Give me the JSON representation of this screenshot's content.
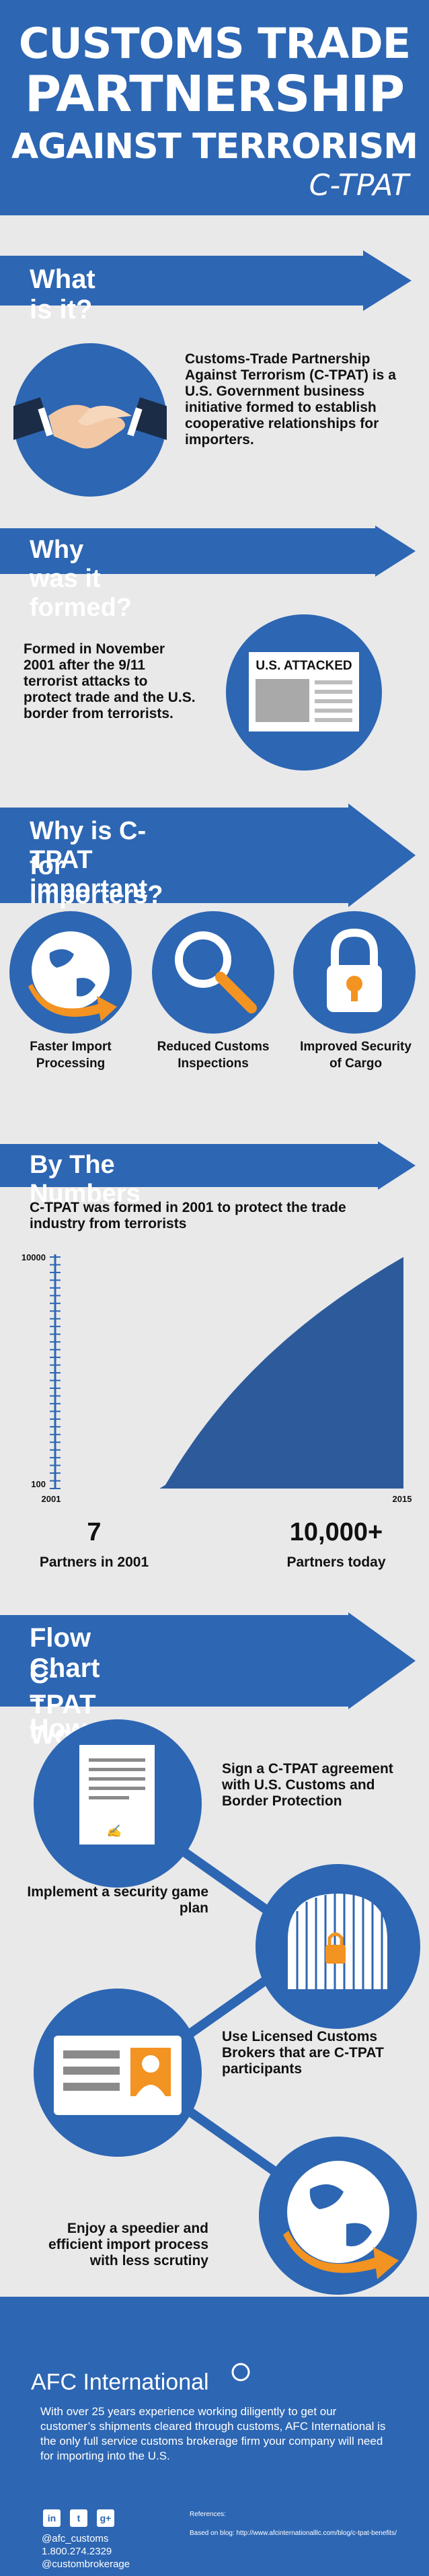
{
  "header": {
    "line1": "CUSTOMS TRADE",
    "line2": "PARTNERSHIP",
    "line3": "AGAINST TERRORISM",
    "line4": "C-TPAT"
  },
  "what": {
    "title": "What is it?",
    "text": "Customs-Trade Partnership Against Terrorism (C-TPAT) is a U.S. Government business initiative formed to establish cooperative relationships for importers."
  },
  "why_formed": {
    "title": "Why was it formed?",
    "text": "Formed in November 2001 after the 9/11 terrorist attacks to protect trade and the U.S. border from terrorists.",
    "newspaper_headline": "U.S. ATTACKED"
  },
  "importance": {
    "title_line1": "Why is C-TPAT important",
    "title_line2": "for importers?",
    "items": [
      {
        "line1": "Faster Import",
        "line2": "Processing",
        "icon": "globe-arrow-icon"
      },
      {
        "line1": "Reduced Customs",
        "line2": "Inspections",
        "icon": "magnifier-icon"
      },
      {
        "line1": "Improved Security",
        "line2": "of Cargo",
        "icon": "padlock-icon"
      }
    ]
  },
  "numbers": {
    "title": "By The Numbers",
    "subtitle": "C-TPAT was formed in 2001 to protect the trade industry from terrorists",
    "stat1_value": "7",
    "stat1_label": "Partners in 2001",
    "stat2_value": "10,000+",
    "stat2_label": "Partners today"
  },
  "chart_data": {
    "type": "area",
    "x": [
      2001,
      2015
    ],
    "y_ticks": [
      "10000",
      "100"
    ],
    "x_ticks": [
      "2001",
      "2015"
    ],
    "ylim": [
      100,
      10000
    ],
    "xlim": [
      2001,
      2015
    ],
    "series": [
      {
        "values": [
          7,
          10000
        ]
      }
    ],
    "title": "",
    "xlabel": "",
    "ylabel": "",
    "color": "#2d5a9a"
  },
  "flow": {
    "title_line1": "Flow Chart – How",
    "title_line2": "C-TPAT Works",
    "steps": [
      "Sign a C-TPAT agreement with U.S. Customs and Border Protection",
      "Implement a security game plan",
      "Use Licensed Customs Brokers that are C-TPAT participants",
      "Enjoy a speedier and efficient import process with less scrutiny"
    ]
  },
  "footer": {
    "brand": "AFC International",
    "description": "With over 25 years experience working diligently to get our customer’s shipments cleared through customs, AFC International is the only full service customs brokerage firm your company will need for importing into the U.S.",
    "social_icons": [
      "in",
      "t",
      "g+"
    ],
    "twitter": "@afc_customs",
    "phone": "1.800.274.2329",
    "handle": "@custombrokerage",
    "references_label": "References:",
    "references_text": "Based on blog: http://www.afcinternationalllc.com/blog/c-tpat-benefits/"
  },
  "colors": {
    "primary": "#2d66b3",
    "accent": "#f39321",
    "background": "#e9e9ea"
  }
}
